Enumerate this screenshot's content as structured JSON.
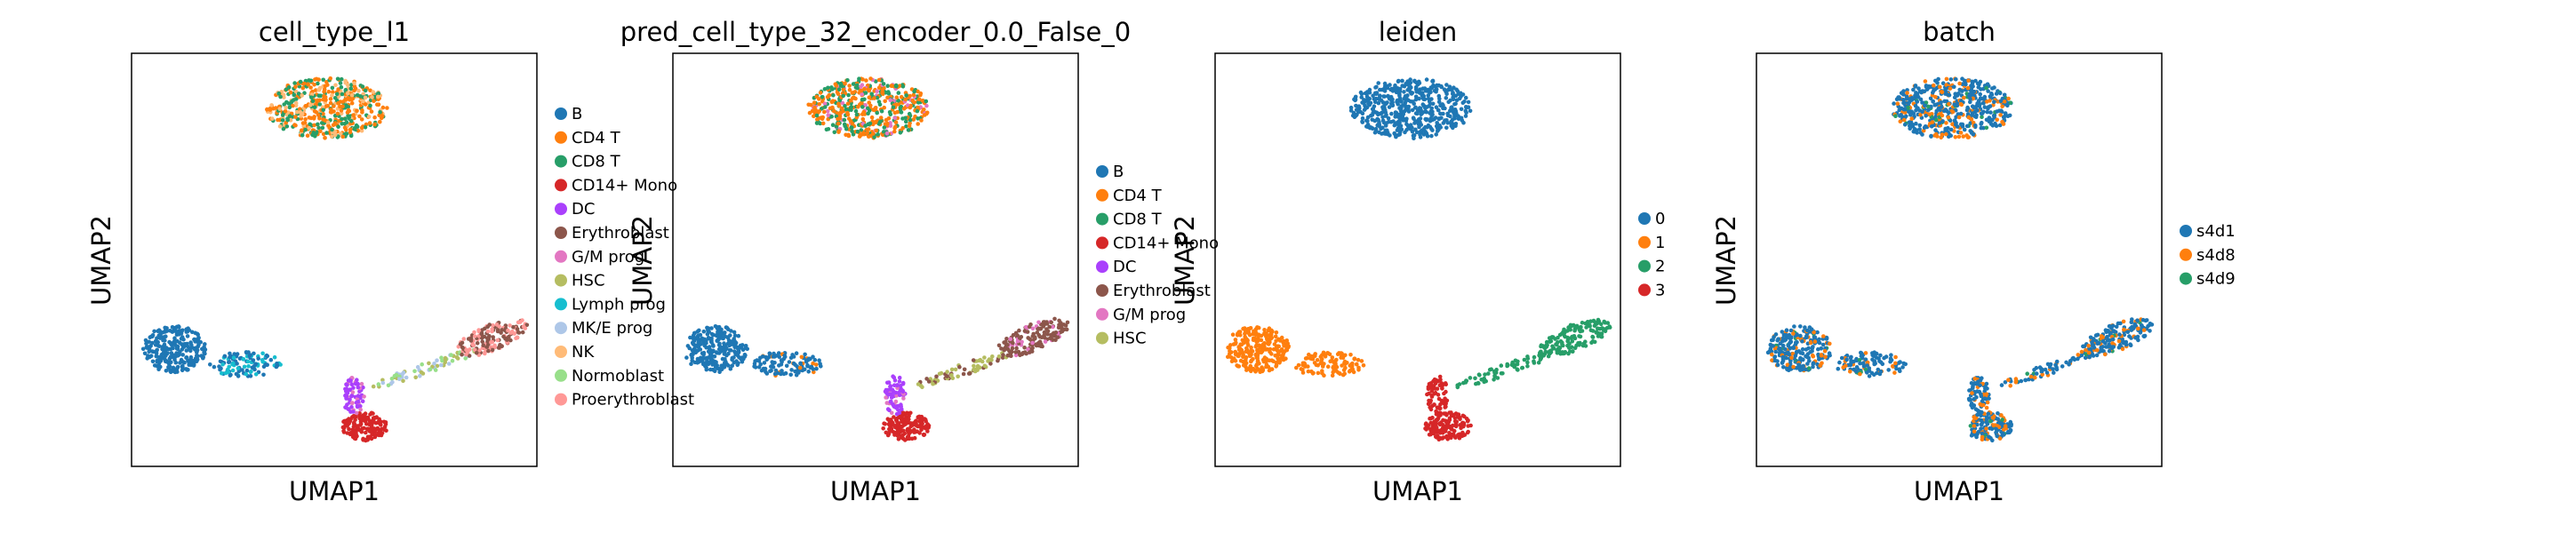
{
  "chart_data": [
    {
      "type": "scatter",
      "title": "cell_type_l1",
      "xlabel": "UMAP1",
      "ylabel": "UMAP2",
      "legend_placement": "right",
      "grid": false,
      "series": [
        {
          "name": "B",
          "color": "#1f77b4"
        },
        {
          "name": "CD4 T",
          "color": "#ff7f0e"
        },
        {
          "name": "CD8 T",
          "color": "#279e68"
        },
        {
          "name": "CD14+ Mono",
          "color": "#d62728"
        },
        {
          "name": "DC",
          "color": "#aa40fc"
        },
        {
          "name": "Erythroblast",
          "color": "#8c564b"
        },
        {
          "name": "G/M prog",
          "color": "#e377c2"
        },
        {
          "name": "HSC",
          "color": "#b5bd61"
        },
        {
          "name": "Lymph prog",
          "color": "#17becf"
        },
        {
          "name": "MK/E prog",
          "color": "#aec7e8"
        },
        {
          "name": "NK",
          "color": "#ffbb78"
        },
        {
          "name": "Normoblast",
          "color": "#98df8a"
        },
        {
          "name": "Proerythroblast",
          "color": "#ff9896"
        }
      ]
    },
    {
      "type": "scatter",
      "title": "pred_cell_type_32_encoder_0.0_False_0",
      "xlabel": "UMAP1",
      "ylabel": "UMAP2",
      "legend_placement": "right",
      "grid": false,
      "series": [
        {
          "name": "B",
          "color": "#1f77b4"
        },
        {
          "name": "CD4 T",
          "color": "#ff7f0e"
        },
        {
          "name": "CD8 T",
          "color": "#279e68"
        },
        {
          "name": "CD14+ Mono",
          "color": "#d62728"
        },
        {
          "name": "DC",
          "color": "#aa40fc"
        },
        {
          "name": "Erythroblast",
          "color": "#8c564b"
        },
        {
          "name": "G/M prog",
          "color": "#e377c2"
        },
        {
          "name": "HSC",
          "color": "#b5bd61"
        }
      ]
    },
    {
      "type": "scatter",
      "title": "leiden",
      "xlabel": "UMAP1",
      "ylabel": "UMAP2",
      "legend_placement": "right",
      "grid": false,
      "series": [
        {
          "name": "0",
          "color": "#1f77b4"
        },
        {
          "name": "1",
          "color": "#ff7f0e"
        },
        {
          "name": "2",
          "color": "#279e68"
        },
        {
          "name": "3",
          "color": "#d62728"
        }
      ]
    },
    {
      "type": "scatter",
      "title": "batch",
      "xlabel": "UMAP1",
      "ylabel": "UMAP2",
      "legend_placement": "right",
      "grid": false,
      "series": [
        {
          "name": "s4d1",
          "color": "#1f77b4"
        },
        {
          "name": "s4d8",
          "color": "#ff7f0e"
        },
        {
          "name": "s4d9",
          "color": "#279e68"
        }
      ]
    }
  ]
}
